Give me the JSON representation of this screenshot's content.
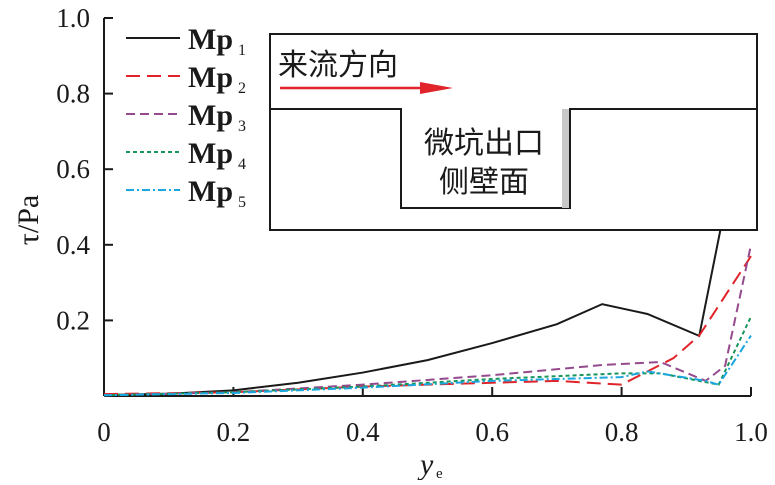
{
  "chart_data": {
    "type": "line",
    "title": "",
    "xlabel": "y",
    "xlabel_sub": "e",
    "ylabel": "τ/Pa",
    "xlim": [
      0,
      1.0
    ],
    "ylim": [
      0,
      1.0
    ],
    "xticks": [
      "0",
      "0.2",
      "0.4",
      "0.6",
      "0.8",
      "1.0"
    ],
    "yticks": [
      "0.2",
      "0.4",
      "0.6",
      "0.8",
      "1.0"
    ],
    "legend_position": "top-left",
    "series": [
      {
        "name": "Mp",
        "sub": "1",
        "color": "#1a1a1a",
        "dash": "",
        "x": [
          0,
          0.1,
          0.2,
          0.3,
          0.4,
          0.5,
          0.6,
          0.7,
          0.77,
          0.84,
          0.92,
          1.0
        ],
        "y": [
          0.003,
          0.006,
          0.015,
          0.035,
          0.062,
          0.095,
          0.14,
          0.19,
          0.243,
          0.217,
          0.159,
          0.845
        ]
      },
      {
        "name": "Mp",
        "sub": "2",
        "color": "#e0242a",
        "dash": "14,7",
        "x": [
          0,
          0.2,
          0.4,
          0.6,
          0.7,
          0.8,
          0.88,
          0.92,
          1.0
        ],
        "y": [
          0.005,
          0.01,
          0.025,
          0.035,
          0.04,
          0.03,
          0.1,
          0.16,
          0.37
        ]
      },
      {
        "name": "Mp",
        "sub": "3",
        "color": "#954a8e",
        "dash": "9,5",
        "x": [
          0,
          0.2,
          0.4,
          0.6,
          0.77,
          0.86,
          0.93,
          0.96,
          1.0
        ],
        "y": [
          0.002,
          0.01,
          0.03,
          0.055,
          0.082,
          0.09,
          0.04,
          0.08,
          0.4
        ]
      },
      {
        "name": "Mp",
        "sub": "4",
        "color": "#17955a",
        "dash": "4,3",
        "x": [
          0,
          0.2,
          0.4,
          0.6,
          0.8,
          0.86,
          0.95,
          1.0
        ],
        "y": [
          0.002,
          0.01,
          0.025,
          0.045,
          0.06,
          0.06,
          0.03,
          0.21
        ]
      },
      {
        "name": "Mp",
        "sub": "5",
        "color": "#1aa7de",
        "dash": "8,3,2,3",
        "x": [
          0,
          0.2,
          0.4,
          0.6,
          0.8,
          0.84,
          0.93,
          0.95,
          1.0
        ],
        "y": [
          0.002,
          0.008,
          0.022,
          0.04,
          0.05,
          0.065,
          0.04,
          0.03,
          0.16
        ]
      }
    ]
  },
  "inset": {
    "flow_label": "来流方向",
    "wall_label_line1": "微坑出口",
    "wall_label_line2": "侧壁面",
    "arrow_color": "#e0242a"
  }
}
